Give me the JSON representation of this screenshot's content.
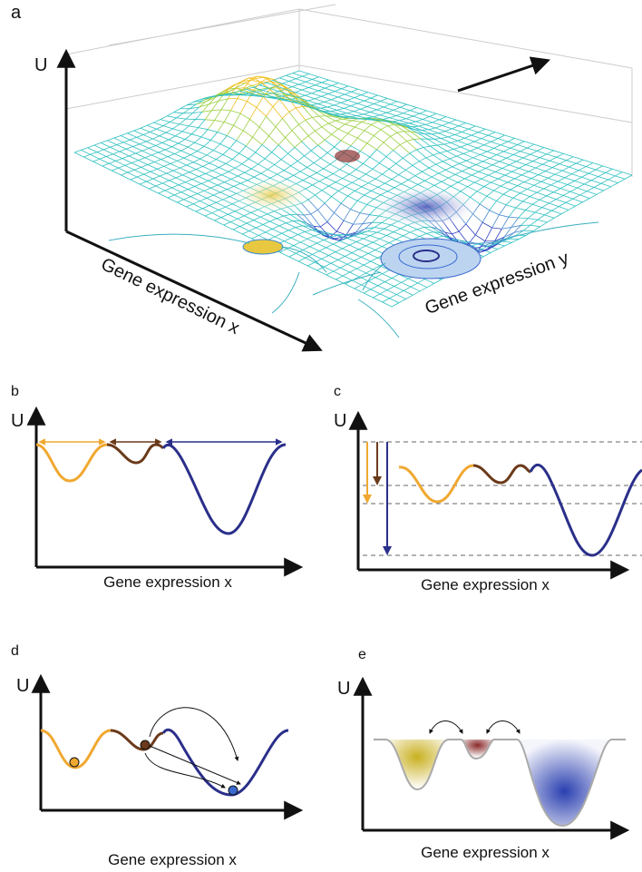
{
  "panels": [
    {
      "label": "a",
      "axis_u": "U",
      "axis_x": "Gene expression x",
      "axis_y": "Gene expression y"
    },
    {
      "label": "b",
      "axis_u": "U",
      "axis_x": "Gene expression x"
    },
    {
      "label": "c",
      "axis_u": "U",
      "axis_x": "Gene expression x"
    },
    {
      "label": "d",
      "axis_u": "U",
      "axis_x": "Gene expression x"
    },
    {
      "label": "e",
      "axis_u": "U",
      "axis_x": "Gene expression x"
    }
  ]
}
